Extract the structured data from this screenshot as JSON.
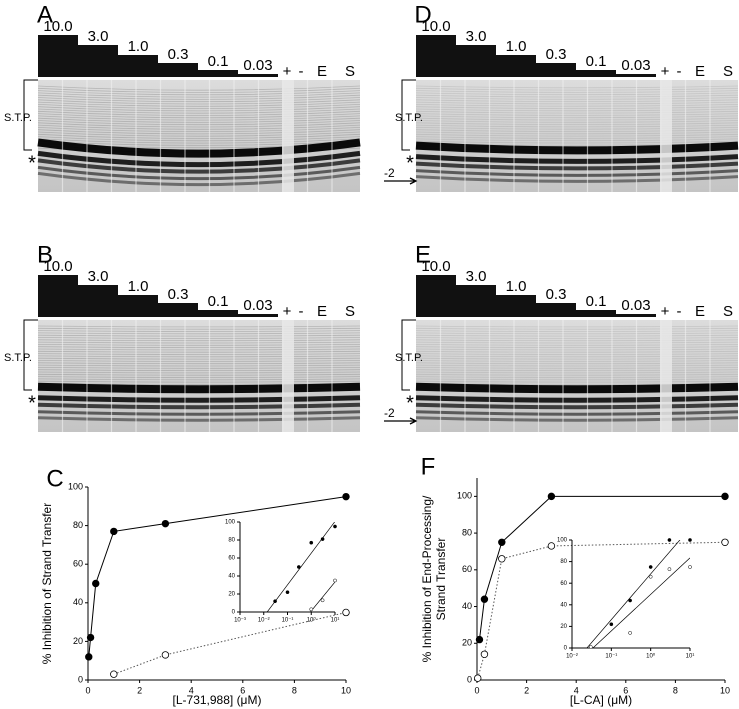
{
  "gels": [
    {
      "label": "A",
      "concentrations": [
        "10.0",
        "3.0",
        "1.0",
        "0.3",
        "0.1",
        "0.03"
      ],
      "controls": [
        "+",
        "-",
        "E",
        "S"
      ],
      "region_label": "S.T.P.",
      "marker": "*"
    },
    {
      "label": "B",
      "concentrations": [
        "10.0",
        "3.0",
        "1.0",
        "0.3",
        "0.1",
        "0.03"
      ],
      "controls": [
        "+",
        "-",
        "E",
        "S"
      ],
      "region_label": "S.T.P.",
      "marker": "*"
    },
    {
      "label": "D",
      "concentrations": [
        "10.0",
        "3.0",
        "1.0",
        "0.3",
        "0.1",
        "0.03"
      ],
      "controls": [
        "+",
        "-",
        "E",
        "S"
      ],
      "region_label": "S.T.P.",
      "marker": "*",
      "arrow_label": "-2"
    },
    {
      "label": "E",
      "concentrations": [
        "10.0",
        "3.0",
        "1.0",
        "0.3",
        "0.1",
        "0.03"
      ],
      "controls": [
        "+",
        "-",
        "E",
        "S"
      ],
      "region_label": "S.T.P.",
      "marker": "*",
      "arrow_label": "-2"
    }
  ],
  "chart_data": [
    {
      "type": "line",
      "label": "C",
      "y_label": [
        "% Inhibition of Strand Transfer"
      ],
      "x_label": "[L-731,988] (μM)",
      "xlim": [
        0,
        10
      ],
      "xticks": [
        0,
        2,
        4,
        6,
        8,
        10
      ],
      "ylim": [
        0,
        100
      ],
      "yticks": [
        0,
        20,
        40,
        60,
        80,
        100
      ],
      "series": [
        {
          "x": [
            0.03,
            0.1,
            0.3,
            1,
            3,
            10
          ],
          "values": [
            12,
            22,
            50,
            77,
            81,
            95
          ],
          "color": "#000000",
          "marker": "filled",
          "line_style": "solid"
        },
        {
          "x": [
            1,
            3,
            10
          ],
          "values": [
            3,
            13,
            35
          ],
          "color": "#555555",
          "marker": "open",
          "line_style": "dotted"
        }
      ],
      "inset": {
        "log_x": true,
        "xlim": [
          0.001,
          10
        ],
        "xticks": [
          {
            "value": 0.001,
            "label": "10⁻³"
          },
          {
            "value": 0.01,
            "label": "10⁻²"
          },
          {
            "value": 0.1,
            "label": "10⁻¹"
          },
          {
            "value": 1,
            "label": "10⁰"
          },
          {
            "value": 10,
            "label": "10¹"
          }
        ],
        "ylim": [
          0,
          100
        ],
        "yticks": [
          0,
          20,
          40,
          60,
          80,
          100
        ]
      }
    },
    {
      "type": "line",
      "label": "F",
      "y_label": [
        "% Inhibition of End-Processing/",
        "Strand Transfer"
      ],
      "x_label": "[L-CA] (μM)",
      "xlim": [
        0,
        10
      ],
      "xticks": [
        0,
        2,
        4,
        6,
        8,
        10
      ],
      "ylim": [
        0,
        110
      ],
      "yticks": [
        0,
        20,
        40,
        60,
        80,
        100
      ],
      "series": [
        {
          "x": [
            0.1,
            0.3,
            1,
            3,
            10
          ],
          "values": [
            22,
            44,
            75,
            100,
            100
          ],
          "color": "#000000",
          "marker": "filled",
          "line_style": "solid"
        },
        {
          "x": [
            0.03,
            0.3,
            1,
            3,
            10
          ],
          "values": [
            1,
            14,
            66,
            73,
            75
          ],
          "color": "#555555",
          "marker": "open",
          "line_style": "dotted"
        }
      ],
      "inset": {
        "log_x": true,
        "xlim": [
          0.01,
          10
        ],
        "xticks": [
          {
            "value": 0.01,
            "label": "10⁻²"
          },
          {
            "value": 0.1,
            "label": "10⁻¹"
          },
          {
            "value": 1,
            "label": "10⁰"
          },
          {
            "value": 10,
            "label": "10¹"
          }
        ],
        "ylim": [
          0,
          100
        ],
        "yticks": [
          0,
          20,
          40,
          60,
          80,
          100
        ]
      }
    }
  ]
}
